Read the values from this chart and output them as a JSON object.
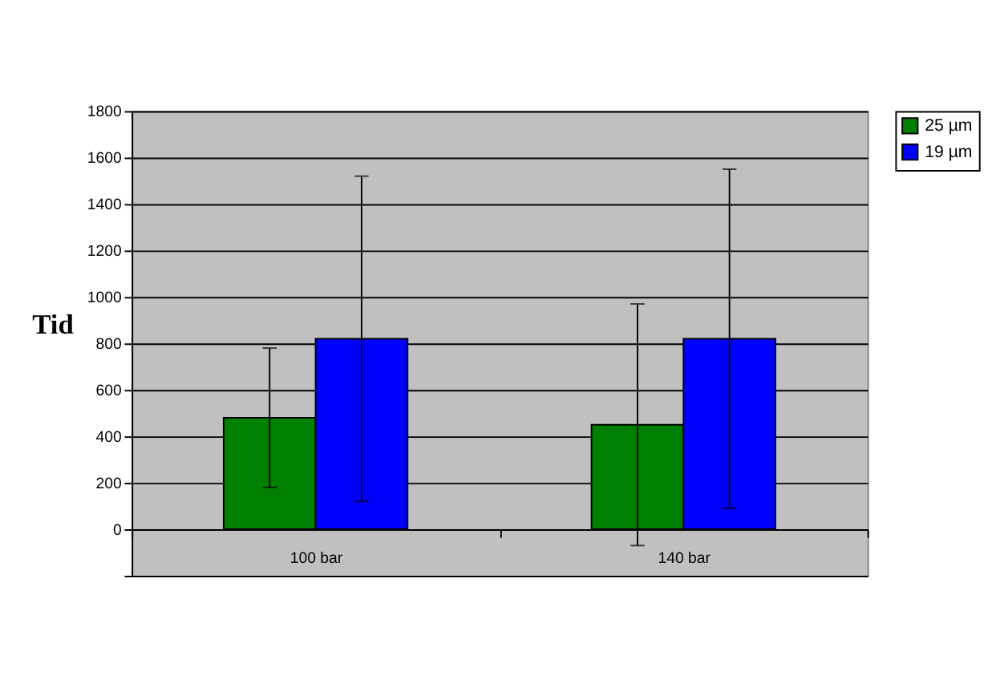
{
  "chart_data": {
    "type": "bar",
    "ylabel": "Tid",
    "categories": [
      "100 bar",
      "140 bar"
    ],
    "series": [
      {
        "name": "25 µm",
        "color": "#008000",
        "values": [
          480,
          450
        ],
        "errors": [
          300,
          520
        ]
      },
      {
        "name": "19 µm",
        "color": "#0000ff",
        "values": [
          820,
          820
        ],
        "errors": [
          700,
          730
        ]
      }
    ],
    "ylim": [
      -200,
      1800
    ],
    "yticks": [
      {
        "value": -200,
        "label": null
      },
      0,
      200,
      400,
      600,
      800,
      1000,
      1200,
      1400,
      1600,
      1800
    ],
    "grid": "y",
    "legend": "right"
  }
}
